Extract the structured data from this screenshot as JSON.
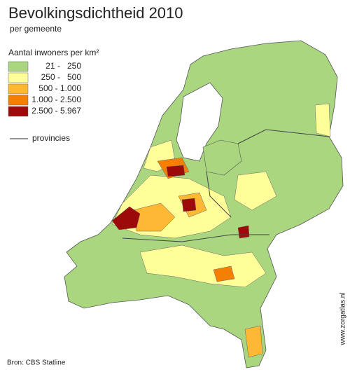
{
  "title": "Bevolkingsdichtheid 2010",
  "subtitle": "per gemeente",
  "legend": {
    "title": "Aantal inwoners per km²",
    "items": [
      {
        "label": "21 -   250",
        "color": "#a9d67f"
      },
      {
        "label": "250 -   500",
        "color": "#ffff99"
      },
      {
        "label": "500 - 1.000",
        "color": "#ffb833"
      },
      {
        "label": "1.000 - 2.500",
        "color": "#f57f00"
      },
      {
        "label": "2.500 - 5.967",
        "color": "#9c0a0a"
      }
    ],
    "line_label": "provincies"
  },
  "source": "Bron: CBS Statline",
  "watermark": "www.zorgatlas.nl"
}
